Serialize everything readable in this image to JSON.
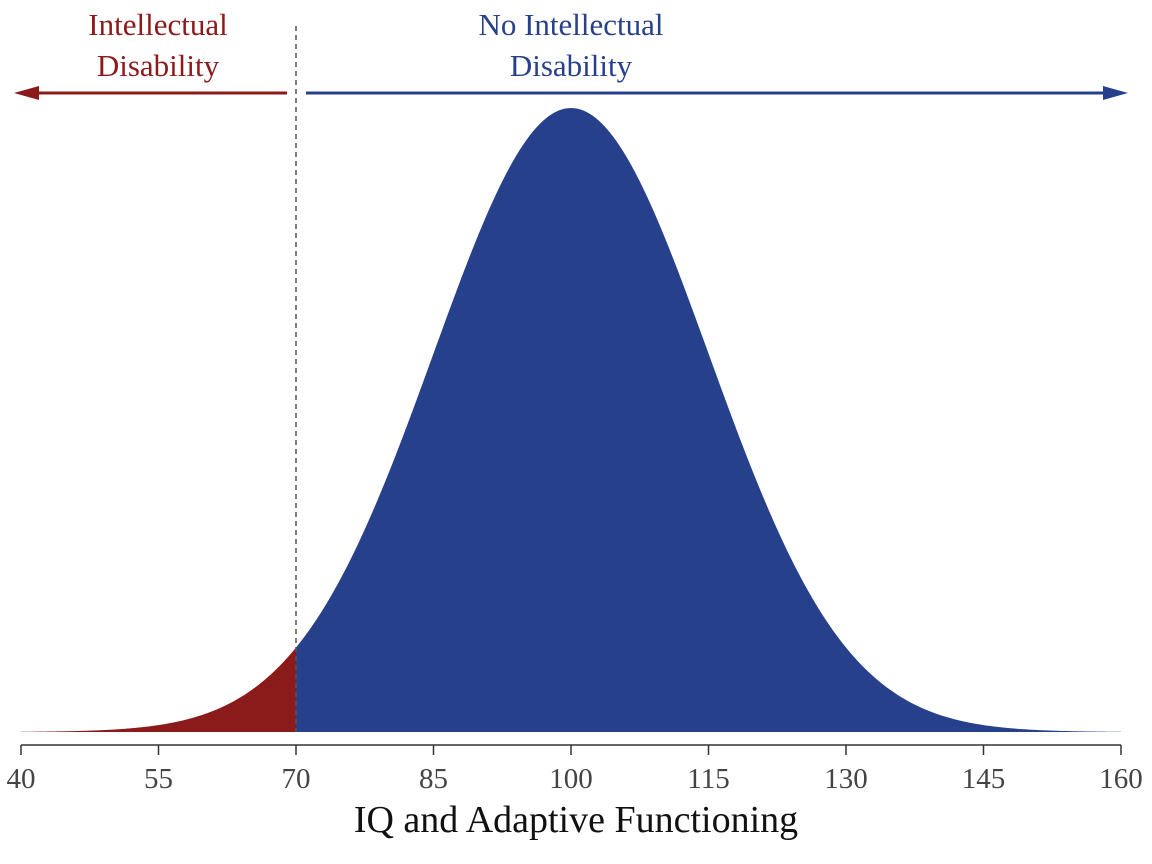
{
  "chart_data": {
    "type": "area",
    "title": "",
    "xlabel": "IQ and Adaptive Functioning",
    "ylabel": "",
    "xlim": [
      40,
      160
    ],
    "xticks": [
      40,
      55,
      70,
      85,
      100,
      115,
      130,
      145,
      160
    ],
    "distribution": {
      "kind": "normal",
      "mean": 100,
      "sd": 15
    },
    "threshold": 70,
    "grid": false,
    "regions": [
      {
        "label_lines": [
          "Intellectual",
          "Disability"
        ],
        "range": [
          40,
          70
        ],
        "color": "#8b1a1a",
        "arrow": "left"
      },
      {
        "label_lines": [
          "No Intellectual",
          "Disability"
        ],
        "range": [
          70,
          160
        ],
        "color": "#27408b",
        "arrow": "right"
      }
    ]
  },
  "colors": {
    "axis": "#333333",
    "tick_label": "#444444",
    "threshold_line": "#555555"
  }
}
